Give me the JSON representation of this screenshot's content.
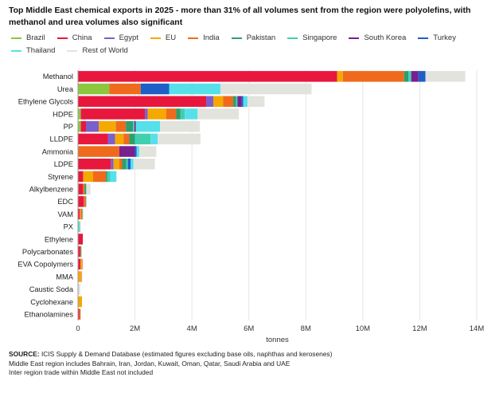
{
  "chart_data": {
    "type": "bar",
    "orientation": "horizontal",
    "stacked": true,
    "title": "Top Middle East chemical exports in 2025 - more than 31% of all volumes sent from the region were polyolefins, with methanol and urea volumes also significant",
    "xlabel": "tonnes",
    "ylabel": "",
    "xlim": [
      0,
      14000000
    ],
    "x_ticks": [
      0,
      2000000,
      4000000,
      6000000,
      8000000,
      10000000,
      12000000,
      14000000
    ],
    "x_tick_labels": [
      "0",
      "2M",
      "4M",
      "6M",
      "8M",
      "10M",
      "12M",
      "14M"
    ],
    "grid": "vertical",
    "legend_position": "top",
    "categories": [
      "Methanol",
      "Urea",
      "Ethylene Glycols",
      "HDPE",
      "PP",
      "LLDPE",
      "Ammonia",
      "LDPE",
      "Styrene",
      "Alkylbenzene",
      "EDC",
      "VAM",
      "PX",
      "Ethylene",
      "Polycarbonates",
      "EVA Copolymers",
      "MMA",
      "Caustic Soda",
      "Cyclohexane",
      "Ethanolamines"
    ],
    "series": [
      {
        "name": "Brazil",
        "color": "#8dc63f",
        "values": [
          0,
          1100000,
          0,
          100000,
          100000,
          0,
          0,
          0,
          0,
          20000,
          0,
          0,
          0,
          0,
          0,
          0,
          0,
          0,
          0,
          0
        ]
      },
      {
        "name": "China",
        "color": "#e8173d",
        "values": [
          9100000,
          0,
          4500000,
          2250000,
          180000,
          1050000,
          0,
          1150000,
          180000,
          150000,
          200000,
          60000,
          0,
          170000,
          80000,
          90000,
          0,
          0,
          0,
          50000
        ]
      },
      {
        "name": "Egypt",
        "color": "#7b5fcc",
        "values": [
          0,
          0,
          250000,
          100000,
          450000,
          250000,
          0,
          100000,
          0,
          0,
          0,
          0,
          0,
          0,
          0,
          0,
          0,
          0,
          0,
          0
        ]
      },
      {
        "name": "EU",
        "color": "#f5a800",
        "values": [
          200000,
          0,
          350000,
          650000,
          600000,
          300000,
          0,
          200000,
          350000,
          0,
          0,
          30000,
          0,
          0,
          0,
          40000,
          110000,
          0,
          140000,
          0
        ]
      },
      {
        "name": "India",
        "color": "#f06a1d",
        "values": [
          2150000,
          1100000,
          350000,
          350000,
          350000,
          200000,
          1450000,
          100000,
          450000,
          60000,
          70000,
          50000,
          0,
          0,
          20000,
          30000,
          20000,
          0,
          0,
          40000
        ]
      },
      {
        "name": "Pakistan",
        "color": "#2e9e6e",
        "values": [
          150000,
          0,
          100000,
          150000,
          250000,
          200000,
          0,
          150000,
          50000,
          60000,
          20000,
          20000,
          20000,
          0,
          20000,
          0,
          0,
          0,
          0,
          0
        ]
      },
      {
        "name": "Singapore",
        "color": "#3fd0b0",
        "values": [
          100000,
          0,
          50000,
          150000,
          50000,
          550000,
          0,
          50000,
          100000,
          0,
          0,
          0,
          30000,
          0,
          0,
          0,
          0,
          0,
          0,
          0
        ]
      },
      {
        "name": "South Korea",
        "color": "#7a1f8e",
        "values": [
          250000,
          0,
          150000,
          0,
          50000,
          0,
          550000,
          0,
          0,
          0,
          0,
          0,
          0,
          0,
          0,
          0,
          0,
          0,
          0,
          0
        ]
      },
      {
        "name": "Turkey",
        "color": "#1f5ec7",
        "values": [
          250000,
          1000000,
          50000,
          0,
          0,
          0,
          60000,
          100000,
          0,
          0,
          0,
          0,
          0,
          0,
          0,
          0,
          0,
          0,
          0,
          0
        ]
      },
      {
        "name": "Thailand",
        "color": "#56e0ea",
        "values": [
          0,
          1800000,
          150000,
          450000,
          850000,
          250000,
          90000,
          100000,
          220000,
          0,
          0,
          0,
          20000,
          0,
          0,
          0,
          0,
          0,
          0,
          0
        ]
      },
      {
        "name": "Rest of World",
        "color": "#e3e3de",
        "values": [
          1400000,
          3200000,
          600000,
          1450000,
          1400000,
          1500000,
          600000,
          750000,
          0,
          150000,
          0,
          30000,
          30000,
          0,
          0,
          20000,
          20000,
          80000,
          0,
          20000
        ]
      }
    ]
  },
  "footnotes": {
    "source_label": "SOURCE:",
    "source_text": " ICIS Supply & Demand Database (estimated figures excluding base oils, naphthas and kerosenes)",
    "line2": "Middle East region includes Bahrain, Iran, Jordan, Kuwait, Oman, Qatar, Saudi Arabia and UAE",
    "line3": "Inter region trade within Middle East not included"
  }
}
